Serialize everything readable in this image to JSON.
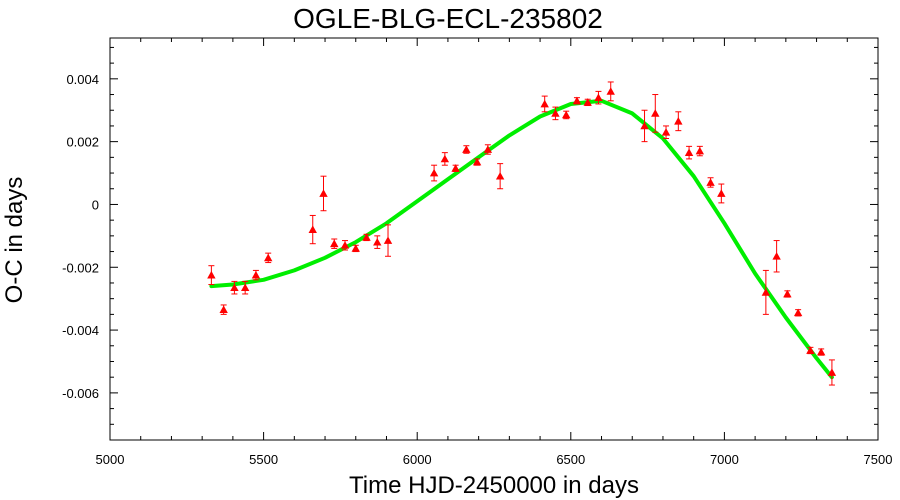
{
  "chart_data": {
    "type": "scatter",
    "title": "OGLE-BLG-ECL-235802",
    "xlabel": "Time HJD-2450000 in days",
    "ylabel": "O-C in days",
    "xlim": [
      5000,
      7500
    ],
    "ylim": [
      -0.0075,
      0.0053
    ],
    "xticks": [
      5000,
      5500,
      6000,
      6500,
      7000,
      7500
    ],
    "xtick_labels": [
      "5000",
      "5500",
      "6000",
      "6500",
      "7000",
      "7500"
    ],
    "yticks": [
      0.004,
      0.002,
      0,
      -0.002,
      -0.004,
      -0.006
    ],
    "ytick_labels": [
      "0.004",
      "0.002",
      "0",
      "-0.002",
      "-0.004",
      "-0.006"
    ],
    "grid": false,
    "colors": {
      "points": "#ff0000",
      "fit": "#00ee00"
    },
    "series": [
      {
        "kind": "points_with_error",
        "points": [
          {
            "x": 5330,
            "y": -0.00225,
            "err": 0.0003
          },
          {
            "x": 5370,
            "y": -0.00335,
            "err": 0.00015
          },
          {
            "x": 5405,
            "y": -0.00265,
            "err": 0.0002
          },
          {
            "x": 5440,
            "y": -0.00265,
            "err": 0.0002
          },
          {
            "x": 5475,
            "y": -0.00225,
            "err": 0.00015
          },
          {
            "x": 5515,
            "y": -0.0017,
            "err": 0.00015
          },
          {
            "x": 5660,
            "y": -0.0008,
            "err": 0.00045
          },
          {
            "x": 5695,
            "y": 0.00035,
            "err": 0.00055
          },
          {
            "x": 5730,
            "y": -0.00125,
            "err": 0.00015
          },
          {
            "x": 5765,
            "y": -0.0013,
            "err": 0.00015
          },
          {
            "x": 5800,
            "y": -0.0014,
            "err": 0.0001
          },
          {
            "x": 5835,
            "y": -0.00105,
            "err": 0.0001
          },
          {
            "x": 5870,
            "y": -0.0012,
            "err": 0.0002
          },
          {
            "x": 5905,
            "y": -0.00115,
            "err": 0.0005
          },
          {
            "x": 6055,
            "y": 0.001,
            "err": 0.00025
          },
          {
            "x": 6090,
            "y": 0.00145,
            "err": 0.0002
          },
          {
            "x": 6125,
            "y": 0.00115,
            "err": 0.0001
          },
          {
            "x": 6160,
            "y": 0.00175,
            "err": 0.00012
          },
          {
            "x": 6195,
            "y": 0.00135,
            "err": 0.0001
          },
          {
            "x": 6230,
            "y": 0.00175,
            "err": 0.00015
          },
          {
            "x": 6270,
            "y": 0.0009,
            "err": 0.0004
          },
          {
            "x": 6415,
            "y": 0.0032,
            "err": 0.00025
          },
          {
            "x": 6450,
            "y": 0.0029,
            "err": 0.0002
          },
          {
            "x": 6485,
            "y": 0.00285,
            "err": 0.00012
          },
          {
            "x": 6520,
            "y": 0.0033,
            "err": 0.0001
          },
          {
            "x": 6555,
            "y": 0.00325,
            "err": 0.0001
          },
          {
            "x": 6590,
            "y": 0.0034,
            "err": 0.0002
          },
          {
            "x": 6630,
            "y": 0.0036,
            "err": 0.0003
          },
          {
            "x": 6740,
            "y": 0.0025,
            "err": 0.0005
          },
          {
            "x": 6775,
            "y": 0.0029,
            "err": 0.0006
          },
          {
            "x": 6810,
            "y": 0.0023,
            "err": 0.0002
          },
          {
            "x": 6850,
            "y": 0.00265,
            "err": 0.0003
          },
          {
            "x": 6885,
            "y": 0.00165,
            "err": 0.0002
          },
          {
            "x": 6920,
            "y": 0.0017,
            "err": 0.00015
          },
          {
            "x": 6955,
            "y": 0.0007,
            "err": 0.00015
          },
          {
            "x": 6990,
            "y": 0.00035,
            "err": 0.0003
          },
          {
            "x": 7135,
            "y": -0.0028,
            "err": 0.0007
          },
          {
            "x": 7170,
            "y": -0.00165,
            "err": 0.0005
          },
          {
            "x": 7205,
            "y": -0.00285,
            "err": 0.0001
          },
          {
            "x": 7240,
            "y": -0.00345,
            "err": 0.0001
          },
          {
            "x": 7280,
            "y": -0.00465,
            "err": 0.0001
          },
          {
            "x": 7315,
            "y": -0.0047,
            "err": 0.0001
          },
          {
            "x": 7350,
            "y": -0.00535,
            "err": 0.0004
          }
        ]
      },
      {
        "kind": "fit_line",
        "x": [
          5330,
          5400,
          5500,
          5600,
          5700,
          5800,
          5900,
          6000,
          6100,
          6200,
          6300,
          6400,
          6500,
          6600,
          6700,
          6800,
          6900,
          7000,
          7100,
          7200,
          7300,
          7350
        ],
        "y": [
          -0.0026,
          -0.00255,
          -0.0024,
          -0.0021,
          -0.0017,
          -0.0012,
          -0.0006,
          0.0001,
          0.0008,
          0.0015,
          0.0022,
          0.0028,
          0.0032,
          0.0033,
          0.0029,
          0.0021,
          0.0009,
          -0.0006,
          -0.0022,
          -0.0036,
          -0.0049,
          -0.0055
        ]
      }
    ]
  }
}
